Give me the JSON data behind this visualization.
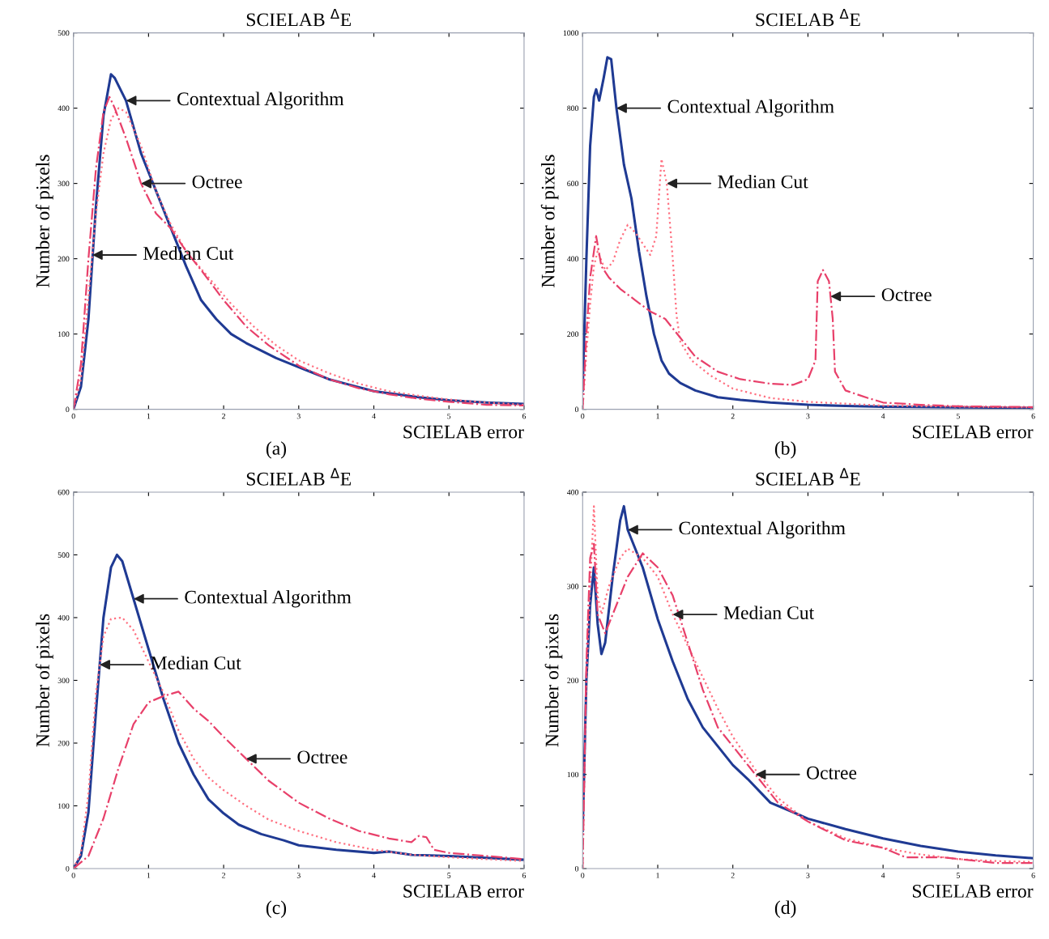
{
  "chart_data": [
    {
      "type": "line",
      "title": "SCIELAB $^{Δ}$E",
      "xlabel": "SCIELAB error",
      "ylabel": "Number of pixels",
      "xlim": [
        0,
        6
      ],
      "xticks": [
        0,
        1,
        2,
        3,
        4,
        5,
        6
      ],
      "ylim": [
        0,
        500
      ],
      "yticks": [
        0,
        100,
        200,
        300,
        400,
        500
      ],
      "grid": false,
      "series": [
        {
          "color": "#1f3a93",
          "line_style": "solid",
          "x": [
            0,
            0.1,
            0.2,
            0.3,
            0.4,
            0.5,
            0.55,
            0.7,
            0.9,
            1.1,
            1.3,
            1.5,
            1.7,
            1.9,
            2.1,
            2.3,
            2.5,
            2.7,
            2.9,
            3.1,
            3.4,
            3.7,
            4.0,
            4.3,
            4.6,
            5.0,
            5.5,
            6
          ],
          "values": [
            0,
            30,
            120,
            270,
            390,
            445,
            440,
            410,
            340,
            290,
            240,
            190,
            145,
            120,
            100,
            88,
            78,
            68,
            60,
            52,
            40,
            32,
            24,
            20,
            16,
            12,
            9,
            7
          ]
        },
        {
          "color": "#ff7080",
          "line_style": "dotted",
          "x": [
            0,
            0.1,
            0.2,
            0.3,
            0.4,
            0.5,
            0.6,
            0.7,
            0.9,
            1.1,
            1.3,
            1.5,
            1.8,
            2.1,
            2.4,
            2.7,
            3.0,
            3.4,
            3.8,
            4.2,
            4.6,
            5.0,
            5.5,
            6
          ],
          "values": [
            0,
            40,
            150,
            260,
            340,
            385,
            400,
            395,
            350,
            290,
            245,
            210,
            175,
            140,
            110,
            85,
            65,
            48,
            34,
            24,
            18,
            13,
            9,
            6
          ]
        },
        {
          "color": "#e8406a",
          "line_style": "dashdot",
          "x": [
            0,
            0.1,
            0.2,
            0.3,
            0.4,
            0.48,
            0.55,
            0.7,
            0.9,
            1.1,
            1.3,
            1.5,
            1.7,
            2.0,
            2.3,
            2.6,
            3.0,
            3.4,
            3.8,
            4.2,
            4.6,
            5.0,
            5.5,
            6
          ],
          "values": [
            0,
            60,
            200,
            320,
            395,
            415,
            400,
            360,
            300,
            260,
            240,
            210,
            185,
            145,
            110,
            85,
            58,
            40,
            28,
            20,
            14,
            10,
            6,
            5
          ]
        }
      ],
      "annotations": [
        {
          "text": "Contextual Algorithm",
          "x": 0.7,
          "y": 410
        },
        {
          "text": "Octree",
          "x": 0.9,
          "y": 300
        },
        {
          "text": "Median Cut",
          "x": 0.25,
          "y": 205
        },
        "(a)"
      ]
    },
    {
      "type": "line",
      "title": "SCIELAB $^{Δ}$E",
      "xlabel": "SCIELAB error",
      "ylabel": "Number of pixels",
      "xlim": [
        0,
        6
      ],
      "xticks": [
        0,
        1,
        2,
        3,
        4,
        5,
        6
      ],
      "ylim": [
        0,
        1000
      ],
      "yticks": [
        0,
        200,
        400,
        600,
        800,
        1000
      ],
      "grid": false,
      "series": [
        {
          "color": "#1f3a93",
          "line_style": "solid",
          "x": [
            0,
            0.05,
            0.1,
            0.15,
            0.18,
            0.22,
            0.28,
            0.33,
            0.38,
            0.45,
            0.55,
            0.65,
            0.75,
            0.85,
            0.95,
            1.05,
            1.15,
            1.3,
            1.5,
            1.8,
            2.1,
            2.5,
            3.0,
            3.5,
            4,
            5,
            6
          ],
          "values": [
            50,
            400,
            700,
            830,
            850,
            820,
            880,
            935,
            930,
            800,
            650,
            560,
            420,
            300,
            200,
            130,
            95,
            70,
            50,
            32,
            25,
            18,
            12,
            9,
            7,
            5,
            4
          ]
        },
        {
          "color": "#ff7080",
          "line_style": "dotted",
          "x": [
            0,
            0.05,
            0.1,
            0.15,
            0.2,
            0.3,
            0.4,
            0.5,
            0.6,
            0.7,
            0.8,
            0.9,
            0.98,
            1.05,
            1.12,
            1.2,
            1.25,
            1.3,
            1.45,
            1.7,
            2.0,
            2.5,
            3.0,
            3.5,
            4,
            5,
            6
          ],
          "values": [
            0,
            150,
            280,
            380,
            420,
            370,
            390,
            450,
            490,
            470,
            440,
            410,
            460,
            665,
            600,
            400,
            250,
            180,
            130,
            90,
            55,
            30,
            20,
            15,
            10,
            7,
            5
          ]
        },
        {
          "color": "#e8406a",
          "line_style": "dashdot",
          "x": [
            0,
            0.05,
            0.1,
            0.18,
            0.25,
            0.35,
            0.5,
            0.7,
            0.9,
            1.1,
            1.3,
            1.5,
            1.8,
            2.1,
            2.5,
            2.8,
            3.0,
            3.1,
            3.13,
            3.2,
            3.28,
            3.33,
            3.36,
            3.5,
            3.8,
            4.0,
            4.5,
            5,
            6
          ],
          "values": [
            0,
            200,
            350,
            460,
            380,
            350,
            320,
            290,
            260,
            240,
            190,
            140,
            100,
            80,
            68,
            65,
            80,
            130,
            340,
            370,
            340,
            240,
            100,
            50,
            30,
            18,
            12,
            8,
            6
          ]
        }
      ],
      "annotations": [
        {
          "text": "Contextual Algorithm",
          "x": 0.45,
          "y": 800
        },
        {
          "text": "Median Cut",
          "x": 1.12,
          "y": 600
        },
        {
          "text": "Octree",
          "x": 3.3,
          "y": 300
        },
        "(b)"
      ]
    },
    {
      "type": "line",
      "title": "SCIELAB $^{Δ}$E",
      "xlabel": "SCIELAB error",
      "ylabel": "Number of pixels",
      "xlim": [
        0,
        6
      ],
      "xticks": [
        0,
        1,
        2,
        3,
        4,
        5,
        6
      ],
      "ylim": [
        0,
        600
      ],
      "yticks": [
        0,
        100,
        200,
        300,
        400,
        500,
        600
      ],
      "grid": false,
      "series": [
        {
          "color": "#1f3a93",
          "line_style": "solid",
          "x": [
            0,
            0.1,
            0.2,
            0.3,
            0.4,
            0.5,
            0.58,
            0.65,
            0.8,
            1.0,
            1.2,
            1.4,
            1.6,
            1.8,
            2.0,
            2.2,
            2.5,
            2.8,
            3.0,
            3.5,
            4.0,
            4.2,
            4.5,
            5.0,
            5.5,
            6
          ],
          "values": [
            0,
            20,
            90,
            250,
            400,
            480,
            500,
            490,
            430,
            350,
            270,
            200,
            150,
            110,
            88,
            70,
            55,
            45,
            37,
            30,
            25,
            27,
            22,
            20,
            17,
            14
          ]
        },
        {
          "color": "#ff7080",
          "line_style": "dotted",
          "x": [
            0,
            0.1,
            0.2,
            0.3,
            0.4,
            0.5,
            0.65,
            0.8,
            1.0,
            1.2,
            1.4,
            1.6,
            1.8,
            2.0,
            2.3,
            2.6,
            3.0,
            3.5,
            4.0,
            4.5,
            5.0,
            5.5,
            6
          ],
          "values": [
            0,
            25,
            120,
            280,
            370,
            398,
            400,
            380,
            330,
            280,
            220,
            175,
            145,
            125,
            100,
            78,
            60,
            42,
            30,
            22,
            18,
            15,
            12
          ]
        },
        {
          "color": "#e8406a",
          "line_style": "dashdot",
          "x": [
            0,
            0.2,
            0.4,
            0.6,
            0.8,
            1.0,
            1.2,
            1.4,
            1.6,
            1.8,
            2.0,
            2.3,
            2.6,
            3.0,
            3.4,
            3.8,
            4.2,
            4.5,
            4.6,
            4.7,
            4.8,
            5.0,
            5.5,
            6
          ],
          "values": [
            0,
            20,
            80,
            160,
            230,
            265,
            275,
            282,
            255,
            235,
            210,
            175,
            140,
            105,
            80,
            60,
            48,
            42,
            52,
            50,
            30,
            25,
            20,
            15
          ]
        }
      ],
      "annotations": [
        {
          "text": "Contextual Algorithm",
          "x": 0.8,
          "y": 430
        },
        {
          "text": "Median Cut",
          "x": 0.35,
          "y": 325
        },
        {
          "text": "Octree",
          "x": 2.3,
          "y": 175
        },
        "(c)"
      ]
    },
    {
      "type": "line",
      "title": "SCIELAB $^{Δ}$E",
      "xlabel": "SCIELAB error",
      "ylabel": "Number of pixels",
      "xlim": [
        0,
        6
      ],
      "xticks": [
        0,
        1,
        2,
        3,
        4,
        5,
        6
      ],
      "ylim": [
        0,
        400
      ],
      "yticks": [
        0,
        100,
        200,
        300,
        400
      ],
      "grid": false,
      "series": [
        {
          "color": "#1f3a93",
          "line_style": "solid",
          "x": [
            0,
            0.05,
            0.1,
            0.15,
            0.2,
            0.25,
            0.3,
            0.4,
            0.5,
            0.55,
            0.6,
            0.8,
            1.0,
            1.2,
            1.4,
            1.6,
            1.8,
            2.0,
            2.2,
            2.5,
            2.8,
            3.0,
            3.5,
            4.0,
            4.5,
            5.0,
            5.5,
            6
          ],
          "values": [
            40,
            200,
            280,
            320,
            260,
            228,
            240,
            310,
            370,
            385,
            360,
            320,
            265,
            220,
            180,
            150,
            130,
            110,
            95,
            70,
            60,
            53,
            42,
            32,
            24,
            18,
            14,
            11
          ]
        },
        {
          "color": "#ff7080",
          "line_style": "dotted",
          "x": [
            0,
            0.05,
            0.1,
            0.15,
            0.2,
            0.25,
            0.35,
            0.5,
            0.6,
            0.8,
            1.0,
            1.2,
            1.5,
            1.8,
            2.0,
            2.3,
            2.6,
            3.0,
            3.5,
            4.0,
            4.5,
            5.0,
            5.5,
            6
          ],
          "values": [
            0,
            200,
            300,
            385,
            290,
            270,
            300,
            330,
            340,
            330,
            310,
            270,
            220,
            170,
            140,
            105,
            75,
            50,
            32,
            22,
            15,
            10,
            8,
            7
          ]
        },
        {
          "color": "#e8406a",
          "line_style": "dashdot",
          "x": [
            0,
            0.05,
            0.1,
            0.15,
            0.2,
            0.3,
            0.4,
            0.6,
            0.8,
            1.0,
            1.2,
            1.4,
            1.6,
            1.8,
            2.0,
            2.3,
            2.6,
            3.0,
            3.5,
            4.0,
            4.3,
            4.8,
            5.5,
            6
          ],
          "values": [
            0,
            220,
            330,
            345,
            270,
            250,
            270,
            310,
            335,
            320,
            290,
            240,
            190,
            150,
            130,
            100,
            70,
            50,
            30,
            22,
            12,
            12,
            6,
            6
          ]
        }
      ],
      "annotations": [
        {
          "text": "Contextual Algorithm",
          "x": 0.6,
          "y": 360
        },
        {
          "text": "Median Cut",
          "x": 1.2,
          "y": 270
        },
        {
          "text": "Octree",
          "x": 2.3,
          "y": 100
        },
        "(d)"
      ]
    }
  ]
}
